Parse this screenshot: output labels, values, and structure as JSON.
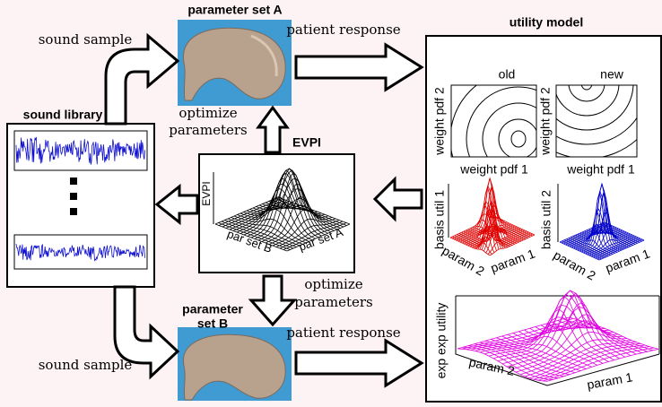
{
  "sound_library": {
    "title": "sound library"
  },
  "parameter_set_a": {
    "title": "parameter set A"
  },
  "parameter_set_b": {
    "title_lines": [
      "parameter",
      "set B"
    ]
  },
  "evpi": {
    "title": "EVPI",
    "z_label": "EVPI",
    "x_label": "par set B",
    "y_label": "par set A"
  },
  "utility_model": {
    "title": "utility model",
    "columns": [
      "old",
      "new"
    ],
    "old_contour": {
      "y_label": "weight pdf 2",
      "x_label": "weight pdf 1"
    },
    "new_contour": {
      "y_label": "weight pdf 2",
      "x_label": "weight pdf 1"
    },
    "basis_1": {
      "z_label": "basis util 1",
      "x_label": "param 2",
      "y_label": "param 1"
    },
    "basis_2": {
      "z_label": "basis util 2",
      "x_label": "param 2",
      "y_label": "param 1"
    },
    "expected": {
      "z_label": "exp exp utility",
      "x_label": "param 2",
      "y_label": "param 1"
    }
  },
  "arrows": {
    "sound_sample_top": "sound sample",
    "patient_response_top": "patient response",
    "optimize_top": [
      "optimize",
      "parameters"
    ],
    "optimize_bottom": [
      "optimize",
      "parameters"
    ],
    "patient_response_bottom": "patient response",
    "sound_sample_bottom": "sound sample"
  }
}
